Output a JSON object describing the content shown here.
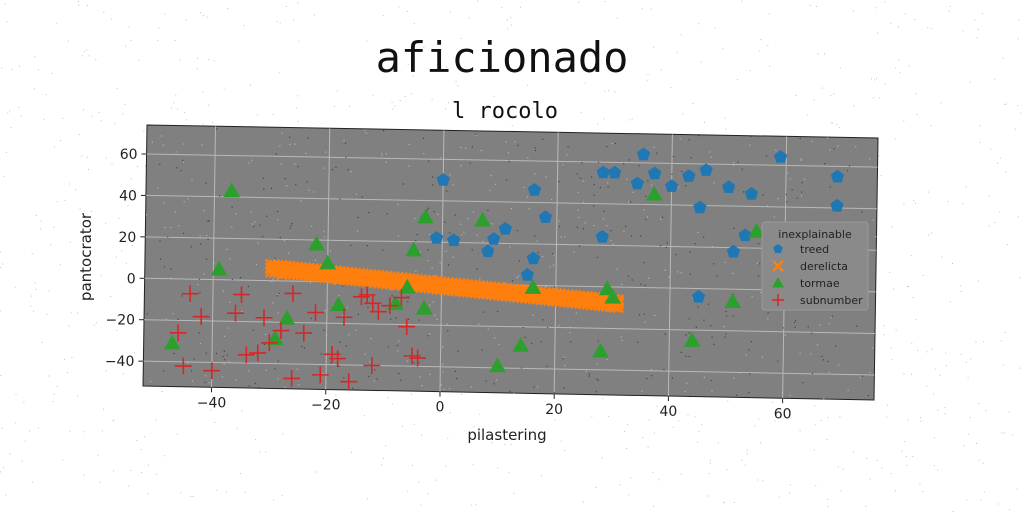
{
  "chart_data": {
    "type": "scatter",
    "title": "aficionado",
    "subtitle": "l rocolo",
    "xlabel": "pilastering",
    "ylabel": "pantocrator",
    "xlim": [
      -52,
      76
    ],
    "ylim": [
      -52,
      74
    ],
    "xticks": [
      -40,
      -20,
      0,
      20,
      40,
      60
    ],
    "yticks": [
      -40,
      -20,
      0,
      20,
      40,
      60
    ],
    "xtick_labels": [
      "−40",
      "−20",
      "0",
      "20",
      "40",
      "60"
    ],
    "ytick_labels": [
      "−40",
      "−20",
      "0",
      "20",
      "40",
      "60"
    ],
    "grid": true,
    "background": "#808080",
    "legend": {
      "title": "inexplainable",
      "placement": "right"
    },
    "series": [
      {
        "name": "treed",
        "marker": "pentagon",
        "color": "#1f77b4",
        "points": [
          [
            0,
            50
          ],
          [
            -1,
            22
          ],
          [
            2,
            21
          ],
          [
            8,
            16
          ],
          [
            9,
            22
          ],
          [
            11,
            27
          ],
          [
            15,
            5
          ],
          [
            16,
            13
          ],
          [
            16,
            46
          ],
          [
            18,
            33
          ],
          [
            28,
            24
          ],
          [
            28,
            55
          ],
          [
            30,
            55
          ],
          [
            34,
            50
          ],
          [
            35,
            64
          ],
          [
            37,
            55
          ],
          [
            40,
            49
          ],
          [
            43,
            54
          ],
          [
            45,
            39
          ],
          [
            45,
            -4
          ],
          [
            46,
            57
          ],
          [
            50,
            49
          ],
          [
            51,
            18
          ],
          [
            53,
            26
          ],
          [
            54,
            46
          ],
          [
            58,
            27
          ],
          [
            59,
            64
          ],
          [
            69,
            55
          ],
          [
            69,
            41
          ],
          [
            71,
            27
          ]
        ]
      },
      {
        "name": "derelicta",
        "marker": "x",
        "color": "#ff7f0e",
        "line_points": [
          [
            -30,
            6
          ],
          [
            31,
            -8
          ]
        ],
        "points": [
          [
            -30,
            6
          ],
          [
            -25,
            5
          ],
          [
            -20,
            4
          ],
          [
            -15,
            3
          ],
          [
            -10,
            2
          ],
          [
            -5,
            1
          ],
          [
            0,
            0
          ],
          [
            5,
            -1
          ],
          [
            10,
            -2
          ],
          [
            15,
            -3
          ],
          [
            20,
            -4
          ],
          [
            25,
            -5
          ],
          [
            31,
            -7
          ],
          [
            -28,
            3
          ],
          [
            -18,
            1
          ],
          [
            -8,
            -1
          ],
          [
            2,
            -3
          ],
          [
            12,
            -5
          ],
          [
            22,
            -6
          ],
          [
            30,
            -9
          ]
        ]
      },
      {
        "name": "tormae",
        "marker": "triangle",
        "color": "#2ca02c",
        "points": [
          [
            -37,
            43
          ],
          [
            -39,
            5
          ],
          [
            -47,
            -31
          ],
          [
            -29,
            -28
          ],
          [
            -27,
            -18
          ],
          [
            -22,
            18
          ],
          [
            -20,
            9
          ],
          [
            -18,
            -11
          ],
          [
            -8,
            -10
          ],
          [
            -6,
            -2
          ],
          [
            -5,
            16
          ],
          [
            -3,
            -12
          ],
          [
            -3,
            32
          ],
          [
            7,
            31
          ],
          [
            10,
            -39
          ],
          [
            14,
            -29
          ],
          [
            16,
            -1
          ],
          [
            28,
            -31
          ],
          [
            29,
            -1
          ],
          [
            30,
            -5
          ],
          [
            37,
            45
          ],
          [
            44,
            -25
          ],
          [
            51,
            -6
          ],
          [
            55,
            28
          ]
        ]
      },
      {
        "name": "subnumber",
        "marker": "plus",
        "color": "#d62728",
        "points": [
          [
            -44,
            -7
          ],
          [
            -46,
            -26
          ],
          [
            -42,
            -18
          ],
          [
            -45,
            -42
          ],
          [
            -40,
            -44
          ],
          [
            -36,
            -16
          ],
          [
            -35,
            -7
          ],
          [
            -34,
            -36
          ],
          [
            -31,
            -18
          ],
          [
            -32,
            -35
          ],
          [
            -30,
            -30
          ],
          [
            -28,
            -24
          ],
          [
            -26,
            -6
          ],
          [
            -26,
            -47
          ],
          [
            -24,
            -25
          ],
          [
            -22,
            -15
          ],
          [
            -21,
            -45
          ],
          [
            -19,
            -35
          ],
          [
            -18,
            -37
          ],
          [
            -17,
            -17
          ],
          [
            -16,
            -48
          ],
          [
            -13,
            -6
          ],
          [
            -12,
            -10
          ],
          [
            -12,
            -40
          ],
          [
            -11,
            -14
          ],
          [
            -9,
            -11
          ],
          [
            -7,
            -7
          ],
          [
            -6,
            -21
          ],
          [
            -5,
            -35
          ],
          [
            -4,
            -36
          ],
          [
            -14,
            -7
          ]
        ]
      }
    ]
  }
}
